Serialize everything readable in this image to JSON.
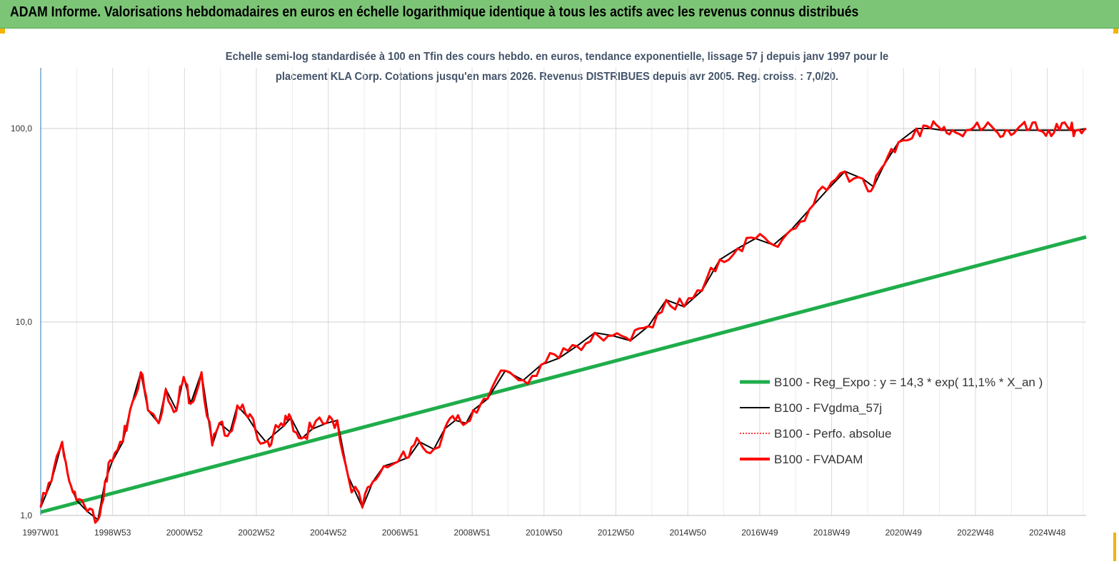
{
  "header": {
    "title": "ADAM Informe. Valorisations hebdomadaires en euros en échelle logarithmique identique à tous les actifs avec les revenus connus distribués"
  },
  "colors": {
    "header_bg": "#7cc576",
    "regression": "#1fad4b",
    "fvgdma": "#000000",
    "perfo": "#ff0000",
    "fvadam": "#ff0000",
    "corner": "#f2b400"
  },
  "chart_data": {
    "type": "line",
    "title_lines": [
      "Echelle semi-log standardisée à 100 en Tfin des cours hebdo. en euros, tendance exponentielle, lissage 57 j depuis janv 1997 pour le",
      "placement KLA Corp. Cotations jusqu'en mars 2026. Revenus DISTRIBUES depuis avr 2005.  Reg. croiss. : 7,0/20."
    ],
    "y_scale": "log",
    "ylim": [
      1,
      100
    ],
    "y_ticks": [
      "1,0",
      "10,0",
      "100,0"
    ],
    "x_tick_labels": [
      "1997W01",
      "1998W53",
      "2000W52",
      "2002W52",
      "2004W52",
      "2006W51",
      "2008W51",
      "2010W50",
      "2012W50",
      "2014W50",
      "2016W49",
      "2018W49",
      "2020W49",
      "2022W48",
      "2024W48"
    ],
    "xlim": [
      1997.0,
      2026.25
    ],
    "grid": "vertical",
    "legend_position": "right-middle",
    "legend": [
      {
        "label": "B100 - Reg_Expo : y = 14,3 * exp( 11,1% *  X_an )",
        "color": "#1fad4b",
        "style": "thick"
      },
      {
        "label": "B100 - FVgdma_57j",
        "color": "#000000",
        "style": "solid"
      },
      {
        "label": "B100 - Perfo. absolue",
        "color": "#ff0000",
        "style": "dotted"
      },
      {
        "label": "B100 - FVADAM",
        "color": "#ff0000",
        "style": "thick"
      }
    ],
    "series": [
      {
        "name": "B100 - Reg_Expo : y = 14,3 * exp( 11,1% *  X_an )",
        "x": [
          1997.0,
          2026.25
        ],
        "values": [
          1.04,
          27.5
        ]
      },
      {
        "name": "B100 - FVADAM",
        "x": [
          1997.0,
          1997.3,
          1997.6,
          1997.8,
          1998.0,
          1998.3,
          1998.6,
          1998.8,
          1999.0,
          1999.3,
          1999.5,
          1999.8,
          2000.0,
          2000.3,
          2000.5,
          2000.8,
          2001.0,
          2001.2,
          2001.5,
          2001.8,
          2002.0,
          2002.3,
          2002.5,
          2002.8,
          2003.0,
          2003.3,
          2003.5,
          2003.8,
          2004.0,
          2004.3,
          2004.6,
          2005.0,
          2005.3,
          2005.6,
          2006.0,
          2006.3,
          2006.6,
          2007.0,
          2007.3,
          2007.6,
          2008.0,
          2008.3,
          2008.6,
          2008.9,
          2009.1,
          2009.5,
          2010.0,
          2010.5,
          2011.0,
          2011.5,
          2012.0,
          2012.5,
          2013.0,
          2013.5,
          2014.0,
          2014.5,
          2015.0,
          2015.5,
          2016.0,
          2016.5,
          2017.0,
          2017.5,
          2018.0,
          2018.5,
          2019.0,
          2019.5,
          2020.0,
          2020.3,
          2020.6,
          2021.0,
          2021.5,
          2021.9,
          2022.2,
          2022.5,
          2022.9,
          2023.3,
          2023.7,
          2024.0,
          2024.3,
          2024.6,
          2024.9,
          2025.2,
          2025.5,
          2025.8,
          2026.0,
          2026.25
        ],
        "values": [
          1.1,
          1.5,
          2.4,
          1.5,
          1.2,
          1.05,
          0.95,
          1.5,
          1.9,
          2.4,
          3.5,
          5.5,
          3.5,
          3.0,
          4.5,
          3.5,
          5.2,
          3.8,
          5.5,
          2.3,
          3.0,
          2.7,
          3.7,
          3.2,
          2.8,
          2.4,
          2.6,
          2.9,
          3.2,
          2.5,
          2.8,
          3.0,
          3.1,
          1.6,
          1.1,
          1.5,
          1.8,
          1.9,
          2.0,
          2.4,
          2.2,
          2.8,
          3.1,
          3.0,
          3.5,
          4.0,
          5.6,
          5.0,
          6.0,
          6.5,
          7.5,
          8.8,
          8.5,
          8.0,
          9.5,
          13.0,
          12.0,
          14.5,
          21.0,
          24.0,
          27.0,
          25.0,
          30.0,
          38.0,
          48.0,
          60.0,
          55.0,
          50.0,
          65.0,
          85.0,
          100.0,
          100.0,
          98.0,
          98.0,
          98.0,
          98.0,
          98.0,
          98.0,
          98.0,
          98.0,
          98.0,
          98.0,
          98.0,
          98.0,
          98.0,
          100.0
        ]
      }
    ]
  }
}
